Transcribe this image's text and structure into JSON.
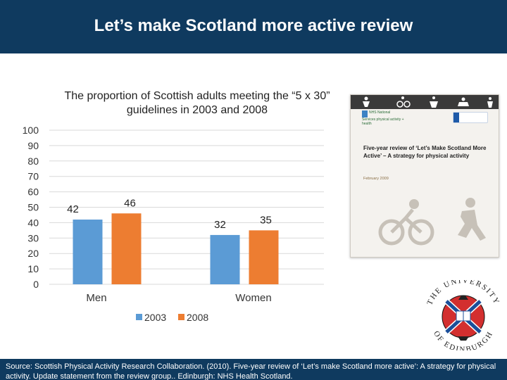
{
  "header": {
    "title": "Let’s make Scotland more active review"
  },
  "chart_data": {
    "type": "bar",
    "title": "The proportion of Scottish adults meeting the “5 x 30” guidelines in 2003 and 2008",
    "categories": [
      "Men",
      "Women"
    ],
    "series": [
      {
        "name": "2003",
        "values": [
          42,
          32
        ],
        "color": "#5b9bd5"
      },
      {
        "name": "2008",
        "values": [
          46,
          35
        ],
        "color": "#ed7d31"
      }
    ],
    "ylim": [
      0,
      100
    ],
    "yticks": [
      100,
      90,
      80,
      70,
      60,
      50,
      40,
      30,
      20,
      10,
      0
    ],
    "xlabel": "",
    "ylabel": "",
    "grid": true,
    "legend_position": "bottom"
  },
  "cover": {
    "nhs_text": "NHS National Services physical activity + health",
    "brand": "sparc",
    "title": "Five-year review of ‘Let’s Make Scotland More Active’ – A strategy for physical activity",
    "date": "February 2009"
  },
  "seal": {
    "text": "THE UNIVERSITY OF EDINBURGH"
  },
  "source": {
    "text": "Source: Scottish Physical Activity Research Collaboration. (2010). Five-year review of ‘Let’s make Scotland more active’: A strategy for physical activity. Update statement from the review group.. Edinburgh: NHS Health Scotland."
  }
}
